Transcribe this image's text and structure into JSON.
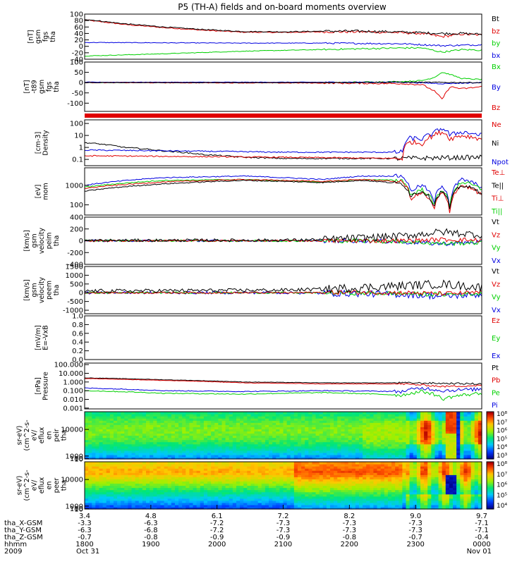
{
  "title": "P5 (TH-A) fields and on-board moments overview",
  "colors": {
    "black": "#000000",
    "red": "#e00000",
    "green": "#00d000",
    "blue": "#0000e0"
  },
  "chart_data": [
    {
      "id": "fgs",
      "type": "line",
      "ylabel": [
        "tha",
        "fgs",
        "gsm",
        "[nT]"
      ],
      "ylim": [
        -40,
        100
      ],
      "ticks": [
        "100",
        "80",
        "60",
        "40",
        "20",
        "0",
        "-20",
        "-40"
      ],
      "tick_values": [
        100,
        80,
        60,
        40,
        20,
        0,
        -20,
        -40
      ],
      "legend": [
        {
          "label": "Bt",
          "color": "#000000"
        },
        {
          "label": "bz",
          "color": "#e00000"
        },
        {
          "label": "by",
          "color": "#00d000"
        },
        {
          "label": "bx",
          "color": "#0000e0"
        }
      ],
      "series": [
        {
          "color": "#e00000",
          "noise": 3,
          "x": [
            0,
            0.1,
            0.2,
            0.3,
            0.4,
            0.5,
            0.6,
            0.7,
            0.78,
            0.85,
            0.9,
            0.95,
            1
          ],
          "values": [
            82,
            68,
            58,
            50,
            44,
            43,
            45,
            45,
            43,
            40,
            30,
            38,
            35
          ]
        },
        {
          "color": "#000000",
          "noise": 3,
          "x": [
            0,
            0.1,
            0.2,
            0.3,
            0.4,
            0.5,
            0.6,
            0.7,
            0.78,
            0.85,
            0.9,
            0.95,
            1
          ],
          "values": [
            84,
            70,
            60,
            52,
            46,
            45,
            47,
            47,
            45,
            42,
            40,
            40,
            37
          ]
        },
        {
          "color": "#0000e0",
          "noise": 2,
          "x": [
            0,
            0.2,
            0.4,
            0.6,
            0.8,
            0.9,
            1
          ],
          "values": [
            12,
            11,
            10,
            10,
            8,
            2,
            5
          ]
        },
        {
          "color": "#00d000",
          "noise": 2,
          "x": [
            0,
            0.2,
            0.4,
            0.6,
            0.8,
            0.85,
            0.9,
            0.95,
            1
          ],
          "values": [
            -30,
            -23,
            -15,
            -10,
            -5,
            -5,
            -18,
            -10,
            -12
          ]
        }
      ]
    },
    {
      "id": "fgs-t89",
      "type": "line",
      "ylabel": [
        "tha",
        "fgs",
        "gsm",
        "-t89",
        "[nT]"
      ],
      "ylim": [
        -140,
        100
      ],
      "ticks": [
        "100",
        "50",
        "0",
        "-50",
        "-100"
      ],
      "tick_values": [
        100,
        50,
        0,
        -50,
        -100
      ],
      "legend": [
        {
          "label": "Bx",
          "color": "#00d000"
        },
        {
          "label": "By",
          "color": "#0000e0"
        },
        {
          "label": "Bz",
          "color": "#e00000"
        }
      ],
      "series": [
        {
          "color": "#00d000",
          "noise": 2,
          "x": [
            0,
            0.6,
            0.8,
            0.85,
            0.88,
            0.9,
            0.92,
            0.95,
            1
          ],
          "values": [
            0,
            0,
            5,
            10,
            25,
            50,
            40,
            20,
            15
          ]
        },
        {
          "color": "#0000e0",
          "noise": 2,
          "x": [
            0,
            0.8,
            0.9,
            1
          ],
          "values": [
            2,
            2,
            -5,
            0
          ]
        },
        {
          "color": "#e00000",
          "noise": 3,
          "x": [
            0,
            0.6,
            0.8,
            0.85,
            0.88,
            0.9,
            0.92,
            0.95,
            1
          ],
          "values": [
            0,
            -2,
            -5,
            -10,
            -40,
            -80,
            -20,
            -30,
            -20
          ]
        },
        {
          "color": "#000000",
          "noise": 2,
          "x": [
            0,
            0.6,
            0.8,
            1
          ],
          "values": [
            0,
            0,
            2,
            0
          ]
        }
      ]
    },
    {
      "id": "density",
      "type": "line",
      "log": true,
      "ylabel": [
        "Density",
        "[cm-3]"
      ],
      "ylim": [
        0.03,
        200
      ],
      "ticks": [
        "100",
        "10",
        "1",
        "0.1"
      ],
      "tick_values": [
        100,
        10,
        1,
        0.1
      ],
      "legend": [
        {
          "label": "Ne",
          "color": "#e00000"
        },
        {
          "label": "Ni",
          "color": "#000000"
        },
        {
          "label": "Npot",
          "color": "#0000e0"
        }
      ],
      "series": [
        {
          "color": "#000000",
          "noise": 0.1,
          "x": [
            0,
            0.1,
            0.2,
            0.3,
            0.4,
            0.5,
            0.6,
            0.7,
            0.8,
            1
          ],
          "values": [
            2.5,
            1.0,
            0.5,
            0.25,
            0.15,
            0.12,
            0.12,
            0.12,
            0.12,
            0.15
          ]
        },
        {
          "color": "#0000e0",
          "noise": 0.1,
          "x": [
            0,
            0.5,
            0.8,
            0.82,
            0.85,
            0.88,
            0.9,
            0.92,
            0.95,
            1
          ],
          "values": [
            0.6,
            0.4,
            0.4,
            6,
            5,
            15,
            40,
            10,
            20,
            10
          ]
        },
        {
          "color": "#e00000",
          "noise": 0.1,
          "x": [
            0,
            0.5,
            0.8,
            0.82,
            0.85,
            0.88,
            0.9,
            0.92,
            0.95,
            1
          ],
          "values": [
            0.2,
            0.15,
            0.12,
            3,
            2,
            10,
            20,
            5,
            10,
            5
          ]
        }
      ]
    },
    {
      "id": "mom-temp",
      "type": "line",
      "log": true,
      "ylabel": [
        "mom",
        "[eV]"
      ],
      "ylim": [
        30,
        8000
      ],
      "ticks": [
        "1000",
        "100"
      ],
      "tick_values": [
        1000,
        100
      ],
      "legend": [
        {
          "label": "Te⊥",
          "color": "#e00000"
        },
        {
          "label": "Te||",
          "color": "#000000"
        },
        {
          "label": "Ti⊥",
          "color": "#e00000"
        },
        {
          "label": "Ti||",
          "color": "#00d000"
        }
      ],
      "series": [
        {
          "color": "#0000e0",
          "noise": 0.05,
          "x": [
            0,
            0.2,
            0.4,
            0.6,
            0.7,
            0.8,
            0.82,
            0.85,
            0.88,
            0.9,
            0.92,
            0.95,
            1
          ],
          "values": [
            1000,
            2500,
            3000,
            2000,
            3000,
            3000,
            500,
            1000,
            100,
            1000,
            50,
            2000,
            800
          ]
        },
        {
          "color": "#00d000",
          "noise": 0.05,
          "x": [
            0,
            0.2,
            0.4,
            0.6,
            0.7,
            0.8,
            0.82,
            0.85,
            0.88,
            0.9,
            0.92,
            0.95,
            1
          ],
          "values": [
            800,
            1800,
            2000,
            1500,
            2000,
            1800,
            300,
            600,
            80,
            600,
            50,
            1500,
            600
          ]
        },
        {
          "color": "#e00000",
          "noise": 0.05,
          "x": [
            0,
            0.2,
            0.4,
            0.6,
            0.7,
            0.8,
            0.82,
            0.85,
            0.88,
            0.9,
            0.92,
            0.95,
            1
          ],
          "values": [
            700,
            1500,
            2000,
            1600,
            2000,
            1500,
            200,
            400,
            50,
            400,
            30,
            1000,
            300
          ]
        },
        {
          "color": "#000000",
          "noise": 0.05,
          "x": [
            0,
            0.2,
            0.4,
            0.6,
            0.7,
            0.8,
            0.82,
            0.85,
            0.88,
            0.9,
            0.92,
            0.95,
            1
          ],
          "values": [
            500,
            1200,
            1800,
            1400,
            1800,
            1200,
            300,
            500,
            80,
            500,
            50,
            1000,
            400
          ]
        }
      ]
    },
    {
      "id": "peim-velocity",
      "type": "line",
      "ylabel": [
        "tha",
        "peim",
        "velocity",
        "gsm",
        "[km/s]"
      ],
      "ylim": [
        -400,
        400
      ],
      "ticks": [
        "400",
        "200",
        "0",
        "-200",
        "-400"
      ],
      "tick_values": [
        400,
        200,
        0,
        -200,
        -400
      ],
      "legend": [
        {
          "label": "Vt",
          "color": "#000000"
        },
        {
          "label": "Vz",
          "color": "#e00000"
        },
        {
          "label": "Vy",
          "color": "#00d000"
        },
        {
          "label": "Vx",
          "color": "#0000e0"
        }
      ],
      "series": [
        {
          "color": "#0000e0",
          "noise": 30,
          "x": [
            0,
            0.5,
            0.7,
            0.8,
            0.9,
            1
          ],
          "values": [
            0,
            0,
            0,
            -20,
            -50,
            -20
          ]
        },
        {
          "color": "#00d000",
          "noise": 30,
          "x": [
            0,
            0.5,
            0.7,
            0.8,
            0.9,
            1
          ],
          "values": [
            0,
            0,
            0,
            -10,
            -50,
            -30
          ]
        },
        {
          "color": "#e00000",
          "noise": 30,
          "x": [
            0,
            0.5,
            0.7,
            0.8,
            0.9,
            1
          ],
          "values": [
            0,
            0,
            0,
            0,
            20,
            10
          ]
        },
        {
          "color": "#000000",
          "noise": 50,
          "x": [
            0,
            0.5,
            0.6,
            0.7,
            0.8,
            0.9,
            1
          ],
          "values": [
            5,
            10,
            20,
            50,
            80,
            150,
            100
          ]
        }
      ]
    },
    {
      "id": "peem-velocity",
      "type": "line",
      "ylabel": [
        "tha",
        "peem",
        "velocity",
        "gsm",
        "[km/s]"
      ],
      "ylim": [
        -1200,
        1500
      ],
      "ticks": [
        "1500",
        "1000",
        "500",
        "0",
        "-500",
        "-1000"
      ],
      "tick_values": [
        1500,
        1000,
        500,
        0,
        -500,
        -1000
      ],
      "legend": [
        {
          "label": "Vt",
          "color": "#000000"
        },
        {
          "label": "Vz",
          "color": "#e00000"
        },
        {
          "label": "Vy",
          "color": "#00d000"
        },
        {
          "label": "Vx",
          "color": "#0000e0"
        }
      ],
      "series": [
        {
          "color": "#0000e0",
          "noise": 150,
          "x": [
            0,
            0.5,
            0.7,
            0.8,
            0.9,
            1
          ],
          "values": [
            0,
            0,
            -50,
            -100,
            -200,
            -100
          ]
        },
        {
          "color": "#00d000",
          "noise": 100,
          "x": [
            0,
            0.5,
            0.7,
            0.8,
            0.9,
            1
          ],
          "values": [
            0,
            0,
            -20,
            -50,
            -100,
            -50
          ]
        },
        {
          "color": "#e00000",
          "noise": 100,
          "x": [
            0,
            0.5,
            0.7,
            0.8,
            0.9,
            1
          ],
          "values": [
            0,
            0,
            20,
            0,
            -50,
            0
          ]
        },
        {
          "color": "#000000",
          "noise": 200,
          "x": [
            0,
            0.5,
            0.6,
            0.7,
            0.8,
            0.9,
            1
          ],
          "values": [
            100,
            150,
            200,
            300,
            400,
            500,
            300
          ]
        }
      ]
    },
    {
      "id": "e-vxb",
      "type": "line",
      "ylabel": [
        "E=-VxB",
        "[mV/m]"
      ],
      "ylim": [
        0,
        1
      ],
      "ticks": [
        "1.0",
        "0.8",
        "0.6",
        "0.4",
        "0.2",
        "0.0"
      ],
      "tick_values": [
        1,
        0.8,
        0.6,
        0.4,
        0.2,
        0
      ],
      "legend": [
        {
          "label": "Ez",
          "color": "#e00000"
        },
        {
          "label": "Ey",
          "color": "#00d000"
        },
        {
          "label": "Ex",
          "color": "#0000e0"
        }
      ],
      "series": []
    },
    {
      "id": "pressure",
      "type": "line",
      "log": true,
      "ylabel": [
        "Pressure",
        "[nPa]"
      ],
      "ylim": [
        0.0008,
        150
      ],
      "ticks": [
        "100.000",
        "10.000",
        "1.000",
        "0.100",
        "0.010",
        "0.001"
      ],
      "tick_values": [
        100,
        10,
        1,
        0.1,
        0.01,
        0.001
      ],
      "legend": [
        {
          "label": "Pt",
          "color": "#000000"
        },
        {
          "label": "Pb",
          "color": "#e00000"
        },
        {
          "label": "Pe",
          "color": "#00d000"
        },
        {
          "label": "Pi",
          "color": "#0000e0"
        }
      ],
      "series": [
        {
          "color": "#000000",
          "noise": 0.05,
          "x": [
            0,
            0.2,
            0.4,
            0.6,
            0.8,
            1
          ],
          "values": [
            3,
            1.8,
            1.0,
            0.8,
            0.8,
            0.6
          ]
        },
        {
          "color": "#e00000",
          "noise": 0.05,
          "x": [
            0,
            0.2,
            0.4,
            0.6,
            0.8,
            0.9,
            1
          ],
          "values": [
            2.5,
            1.5,
            0.8,
            0.6,
            0.6,
            0.3,
            0.4
          ]
        },
        {
          "color": "#0000e0",
          "noise": 0.1,
          "x": [
            0,
            0.2,
            0.4,
            0.6,
            0.8,
            0.85,
            0.9,
            1
          ],
          "values": [
            0.2,
            0.1,
            0.08,
            0.1,
            0.08,
            0.2,
            0.1,
            0.15
          ]
        },
        {
          "color": "#00d000",
          "noise": 0.1,
          "x": [
            0,
            0.2,
            0.4,
            0.6,
            0.8,
            0.85,
            0.9,
            1
          ],
          "values": [
            0.1,
            0.05,
            0.04,
            0.06,
            0.03,
            0.08,
            0.01,
            0.05
          ]
        }
      ]
    },
    {
      "id": "peir-spectrogram",
      "type": "heatmap",
      "ylabel": [
        "tha",
        "peir",
        "en",
        "eflux",
        "eV/",
        "(cm^2-s-",
        "sr-eV)"
      ],
      "ylim": [
        7,
        16000
      ],
      "ticks": [
        "10000",
        "1000",
        "100",
        "10"
      ],
      "tick_values": [
        10000,
        1000,
        100,
        10
      ],
      "colorbar_ticks": [
        "10⁸",
        "10⁷",
        "10⁶",
        "10⁵",
        "10⁴",
        "10³"
      ]
    },
    {
      "id": "peer-spectrogram",
      "type": "heatmap",
      "ylabel": [
        "tha",
        "peer",
        "en",
        "eflux",
        "eV/",
        "(cm^2-s-",
        "sr-eV)"
      ],
      "ylim": [
        7,
        16000
      ],
      "ticks": [
        "10000",
        "1000",
        "100",
        "10"
      ],
      "tick_values": [
        10000,
        1000,
        100,
        10
      ],
      "colorbar_ticks": [
        "10⁸",
        "10⁷",
        "10⁶",
        "10⁵",
        "10⁴"
      ]
    }
  ],
  "x_axis": {
    "ticks": [
      "3.4",
      "4.8",
      "6.1",
      "7.2",
      "8.2",
      "9.0",
      "9.7"
    ],
    "rows": [
      {
        "label": "tha_X-GSM",
        "values": [
          "-3.3",
          "-6.3",
          "-7.2",
          "-7.3",
          "-7.3",
          "-7.3",
          "-7.1"
        ]
      },
      {
        "label": "tha_Y-GSM",
        "values": [
          "-6.3",
          "-6.8",
          "-7.2",
          "-7.3",
          "-7.3",
          "-7.3",
          "-7.1"
        ]
      },
      {
        "label": "tha_Z-GSM",
        "values": [
          "-0.7",
          "-0.8",
          "-0.9",
          "-0.9",
          "-0.8",
          "-0.7",
          "-0.4"
        ]
      },
      {
        "label": "hhmm",
        "values": [
          "1800",
          "1900",
          "2000",
          "2100",
          "2200",
          "2300",
          "0000"
        ]
      }
    ],
    "year": "2009",
    "start_date": "Oct 31",
    "end_date": "Nov 01"
  }
}
